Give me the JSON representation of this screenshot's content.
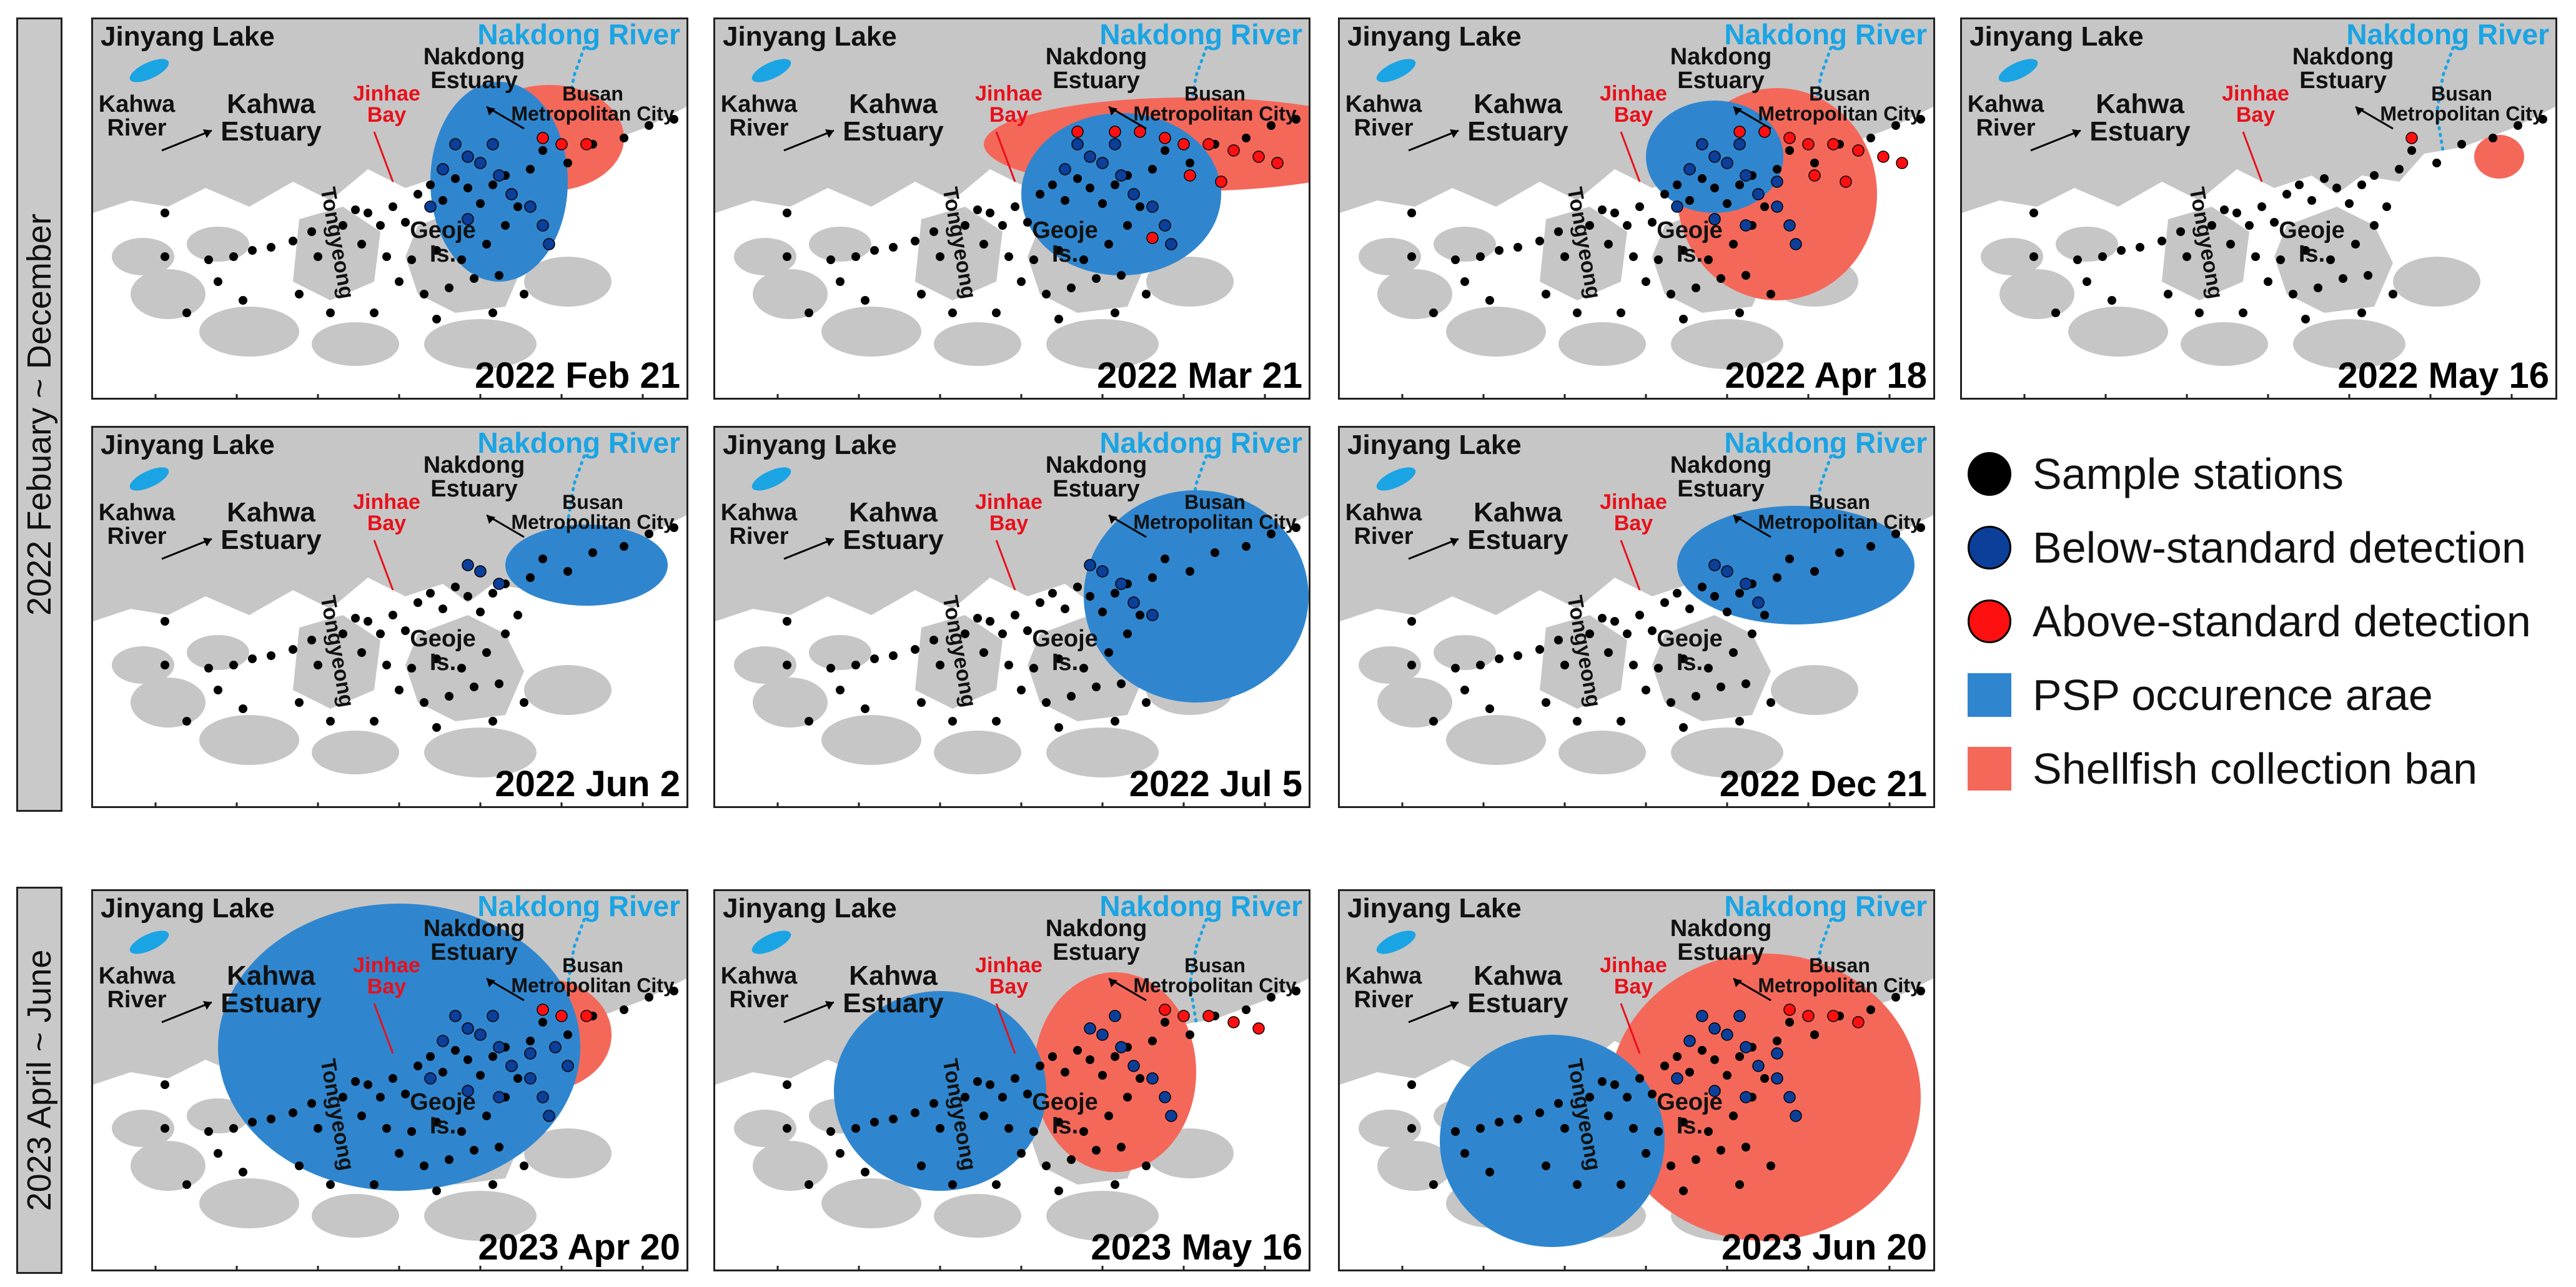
{
  "row_labels": [
    "2022 Febuary ~ December",
    "2023 April ~ June"
  ],
  "map_labels": {
    "jinyang_lake": "Jinyang Lake",
    "nakdong_river": "Nakdong River",
    "kahwa_river": "Kahwa River",
    "kahwa_estuary": "Kahwa Estuary",
    "jinhae_bay": "Jinhae Bay",
    "nakdong_estuary": "Nakdong Estuary",
    "busan": "Busan Metropolitan City",
    "tongyeong": "Tongyeong",
    "geoje": "Geoje Is."
  },
  "panels": [
    {
      "date": "2022 Feb 21",
      "psp": "jinhae-east",
      "ban": "jinhae-nakdong",
      "blue": 12,
      "red": 3
    },
    {
      "date": "2022 Mar 21",
      "psp": "geoje-north",
      "ban": "jinhae-busan",
      "blue": 10,
      "red": 12
    },
    {
      "date": "2022 Apr 18",
      "psp": "jinhae-small",
      "ban": "geoje-strait",
      "blue": 14,
      "red": 10
    },
    {
      "date": "2022 May 16",
      "psp": "none",
      "ban": "busan-point",
      "blue": 0,
      "red": 1
    },
    {
      "date": "2022 Jun 2",
      "psp": "busan-east",
      "ban": "none",
      "blue": 3,
      "red": 0
    },
    {
      "date": "2022 Jul 5",
      "psp": "busan-geoje",
      "ban": "none",
      "blue": 5,
      "red": 0
    },
    {
      "date": "2022 Dec 21",
      "psp": "nakdong-points",
      "ban": "none",
      "blue": 4,
      "red": 0
    },
    {
      "date": "2023 Apr 20",
      "psp": "jinhae-wide",
      "ban": "jinhae-east-small",
      "blue": 16,
      "red": 3
    },
    {
      "date": "2023 May 16",
      "psp": "tongyeong-strip",
      "ban": "geoje-east",
      "blue": 8,
      "red": 5
    },
    {
      "date": "2023 Jun 20",
      "psp": "tongyeong-corner",
      "ban": "geoje-wide",
      "blue": 14,
      "red": 4
    }
  ],
  "legend": [
    {
      "label": "Sample stations",
      "color": "#000000",
      "shape": "circle"
    },
    {
      "label": "Below-standard detection",
      "color": "#0b3f9a",
      "shape": "circle"
    },
    {
      "label": "Above-standard detection",
      "color": "#ff1010",
      "shape": "circle"
    },
    {
      "label": "PSP occurence arae",
      "color": "#2f86cf",
      "shape": "square"
    },
    {
      "label": "Shellfish collection ban",
      "color": "#f4685a",
      "shape": "square"
    }
  ],
  "colors": {
    "land": "#c6c6c6",
    "psp": "#2f86cf",
    "ban": "#f4685a",
    "blue_dot": "#0b3f9a",
    "red_dot": "#ff1010",
    "river": "#1aa4e4",
    "jinhae": "#e8101a"
  }
}
